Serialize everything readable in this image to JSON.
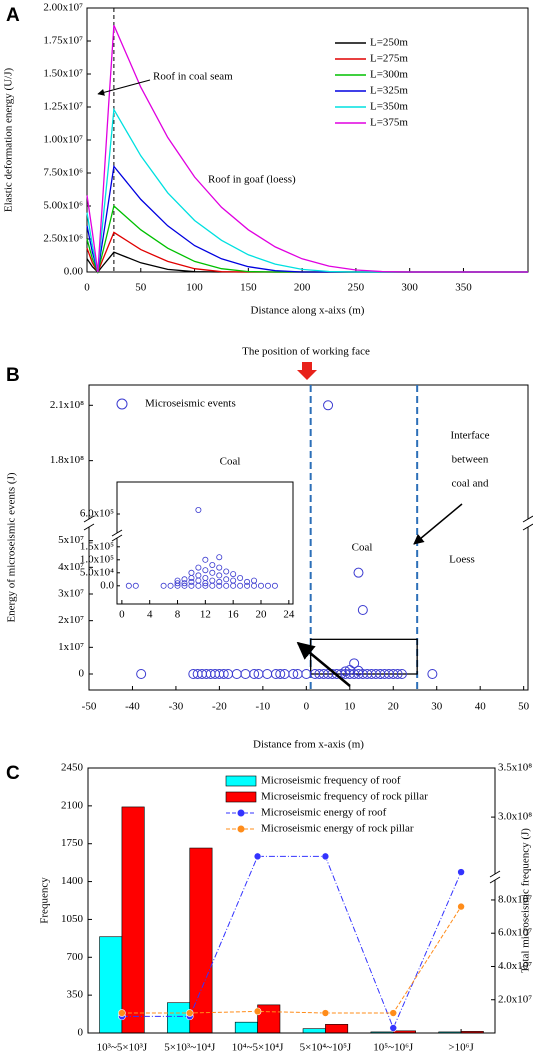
{
  "chart_data": [
    {
      "type": "line",
      "label": "A",
      "xlabel": "Distance along x-aixs (m)",
      "ylabel": "Elastic deformation energy (U/J)",
      "x": [
        0,
        5,
        10,
        15,
        20,
        25,
        50,
        75,
        100,
        125,
        150,
        175,
        200,
        225,
        250,
        275,
        300,
        325,
        350,
        375,
        410
      ],
      "series": [
        {
          "name": "L=250m",
          "color": "#000000",
          "values": [
            1000000,
            400000,
            0,
            500000,
            1000000,
            1500000,
            700000,
            200000,
            20000,
            0,
            0,
            0,
            0,
            0,
            0,
            0,
            0,
            0,
            0,
            0,
            0
          ]
        },
        {
          "name": "L=275m",
          "color": "#e00000",
          "values": [
            1800000,
            700000,
            0,
            1000000,
            2000000,
            3000000,
            1700000,
            800000,
            250000,
            20000,
            0,
            0,
            0,
            0,
            0,
            0,
            0,
            0,
            0,
            0,
            0
          ]
        },
        {
          "name": "L=300m",
          "color": "#00c000",
          "values": [
            2500000,
            1000000,
            0,
            1600000,
            3300000,
            5000000,
            3200000,
            1800000,
            800000,
            250000,
            30000,
            0,
            0,
            0,
            0,
            0,
            0,
            0,
            0,
            0,
            0
          ]
        },
        {
          "name": "L=325m",
          "color": "#0000e0",
          "values": [
            3500000,
            1500000,
            0,
            2600000,
            5300000,
            8000000,
            5500000,
            3500000,
            2000000,
            1000000,
            400000,
            100000,
            0,
            0,
            0,
            0,
            0,
            0,
            0,
            0,
            0
          ]
        },
        {
          "name": "L=350m",
          "color": "#00e0e0",
          "values": [
            4500000,
            2000000,
            0,
            4000000,
            8000000,
            12300000,
            8800000,
            6000000,
            3900000,
            2400000,
            1300000,
            600000,
            200000,
            40000,
            0,
            0,
            0,
            0,
            0,
            0,
            0
          ]
        },
        {
          "name": "L=375m",
          "color": "#e000e0",
          "values": [
            5800000,
            3000000,
            0,
            6000000,
            12500000,
            18700000,
            14000000,
            10200000,
            7200000,
            4900000,
            3200000,
            1900000,
            1000000,
            450000,
            150000,
            30000,
            0,
            0,
            0,
            0,
            0
          ]
        }
      ],
      "xlim": [
        0,
        410
      ],
      "xticks": [
        0,
        50,
        100,
        150,
        200,
        250,
        300,
        350
      ],
      "ylim": [
        0,
        20000000
      ],
      "yticks": [
        {
          "value": 0,
          "label": "0.00"
        },
        {
          "value": 2500000,
          "label": "2.50x10⁶"
        },
        {
          "value": 5000000,
          "label": "5.00x10⁶"
        },
        {
          "value": 7500000,
          "label": "7.50x10⁶"
        },
        {
          "value": 10000000,
          "label": "1.00x10⁷"
        },
        {
          "value": 12500000,
          "label": "1.25x10⁷"
        },
        {
          "value": 15000000,
          "label": "1.50x10⁷"
        },
        {
          "value": 17500000,
          "label": "1.75x10⁷"
        },
        {
          "value": 20000000,
          "label": "2.00x10⁷"
        }
      ],
      "reference_line_x": 25,
      "annotations": [
        "Roof in coal seam",
        "Roof in goaf (loess)"
      ]
    },
    {
      "type": "scatter",
      "label": "B",
      "title": "The position of working face",
      "xlabel": "Distance from x-axis (m)",
      "ylabel": "Energy of microseismic events (J)",
      "series": [
        {
          "name": "Microseismic events",
          "color": "#3a3ad0",
          "x": [
            -38,
            -26,
            -25,
            -24,
            -23,
            -22,
            -21,
            -20,
            -19,
            -18,
            -16,
            -14,
            -12,
            -11,
            -9,
            -7,
            -6,
            -5,
            -3,
            -2,
            0,
            2,
            3,
            4,
            5,
            6,
            7,
            8,
            9,
            10,
            11,
            12,
            13,
            14,
            15,
            16,
            17,
            18,
            19,
            20,
            21,
            22,
            29,
            5,
            12,
            13,
            11,
            10,
            12,
            9
          ],
          "values": [
            0,
            0,
            0,
            0,
            0,
            0,
            0,
            0,
            0,
            0,
            0,
            0,
            0,
            0,
            0,
            0,
            0,
            0,
            0,
            0,
            0,
            0,
            0,
            0,
            0,
            0,
            0,
            0,
            0,
            0,
            0,
            0,
            0,
            0,
            0,
            0,
            0,
            0,
            0,
            0,
            0,
            0,
            0,
            210000000,
            38000000,
            24000000,
            4000000,
            1500000,
            1200000,
            1000000
          ]
        }
      ],
      "xlim": [
        -50,
        51
      ],
      "xticks": [
        -50,
        -40,
        -30,
        -20,
        -10,
        0,
        10,
        20,
        30,
        40,
        50
      ],
      "ylim": [
        -6000000,
        221000000
      ],
      "ybreak": [
        54000000,
        150000000
      ],
      "yticks": [
        0,
        {
          "value": 10000000,
          "label": "1x10⁷"
        },
        {
          "value": 20000000,
          "label": "2x10⁷"
        },
        {
          "value": 30000000,
          "label": "3x10⁷"
        },
        {
          "value": 40000000,
          "label": "4x10⁷"
        },
        {
          "value": 50000000,
          "label": "5x10⁷"
        },
        {
          "value": 180000000,
          "label": "1.8x10⁸"
        },
        {
          "value": 210000000,
          "label": "2.1x10⁸"
        }
      ],
      "reference_lines_x": [
        1,
        25.5
      ],
      "highlight_box": {
        "x": [
          1,
          25.5
        ],
        "y": [
          0,
          13000000
        ]
      },
      "annotations": [
        "Coal",
        "Interface",
        "between",
        "coal and",
        "Coal",
        "Loess"
      ],
      "inset": {
        "xlim": [
          -0.7,
          24.6
        ],
        "xticks": [
          0,
          4,
          8,
          12,
          16,
          20,
          24
        ],
        "ylim": [
          -70000,
          760000
        ],
        "ybreak": [
          180000,
          510000
        ],
        "yticks": [
          {
            "value": 0,
            "label": "0.0"
          },
          {
            "value": 50000,
            "label": "5.0x10⁴"
          },
          {
            "value": 100000,
            "label": "1.0x10⁵"
          },
          {
            "value": 150000,
            "label": "1.5x10⁵"
          },
          {
            "value": 600000,
            "label": "6.0x10⁵"
          }
        ],
        "x": [
          1,
          2,
          6,
          7,
          8,
          8,
          8,
          9,
          9,
          9,
          10,
          10,
          10,
          10,
          11,
          11,
          11,
          11,
          11,
          12,
          12,
          12,
          12,
          12,
          13,
          13,
          13,
          13,
          14,
          14,
          14,
          14,
          14,
          15,
          15,
          15,
          16,
          16,
          16,
          17,
          17,
          18,
          18,
          19,
          19,
          20,
          21,
          22
        ],
        "values": [
          0,
          0,
          0,
          0,
          0,
          10000,
          20000,
          0,
          10000,
          25000,
          0,
          15000,
          30000,
          50000,
          0,
          20000,
          40000,
          70000,
          620000,
          0,
          10000,
          30000,
          60000,
          100000,
          0,
          20000,
          50000,
          80000,
          0,
          15000,
          40000,
          70000,
          110000,
          0,
          25000,
          55000,
          0,
          20000,
          45000,
          0,
          30000,
          0,
          15000,
          0,
          20000,
          0,
          0,
          0
        ]
      }
    },
    {
      "type": "bar",
      "label": "C",
      "ylabel": "Frequency",
      "y2label": "Total microseismic frequency (J)",
      "categories": [
        "10³~5×10³J",
        "5×10³~10⁴J",
        "10⁴~5×10⁴J",
        "5×10⁴~10⁵J",
        "10⁵~10⁶J",
        ">10⁶J"
      ],
      "series": [
        {
          "name": "Microseismic frequency of roof",
          "color": "#00ffff",
          "values": [
            890,
            280,
            100,
            40,
            10,
            10
          ]
        },
        {
          "name": "Microseismic frequency of rock pillar",
          "color": "#ff0000",
          "values": [
            2090,
            1710,
            260,
            80,
            20,
            15
          ]
        },
        {
          "name": "Microseismic energy of roof",
          "color": "#3333ff",
          "type": "line",
          "axis": "y2",
          "values": [
            10000000,
            10000000,
            260000000,
            260000000,
            3000000,
            244000000
          ]
        },
        {
          "name": "Microseismic energy of rock pillar",
          "color": "#ff8c1a",
          "type": "line",
          "axis": "y2",
          "values": [
            12000000,
            12000000,
            13000000,
            12000000,
            12000000,
            76000000
          ]
        }
      ],
      "ylim": [
        0,
        2450
      ],
      "yticks": [
        0,
        350,
        700,
        1050,
        1400,
        1750,
        2100,
        2450
      ],
      "y2lim": [
        0,
        350000000
      ],
      "y2break": [
        92000000,
        240000000
      ],
      "y2ticks": [
        {
          "value": 20000000,
          "label": "2.0x10⁷"
        },
        {
          "value": 40000000,
          "label": "4.0x10⁷"
        },
        {
          "value": 60000000,
          "label": "6.0x10⁷"
        },
        {
          "value": 80000000,
          "label": "8.0x10⁷"
        },
        {
          "value": 300000000,
          "label": "3.0x10⁸"
        },
        {
          "value": 350000000,
          "label": "3.5x10⁸"
        }
      ]
    }
  ]
}
